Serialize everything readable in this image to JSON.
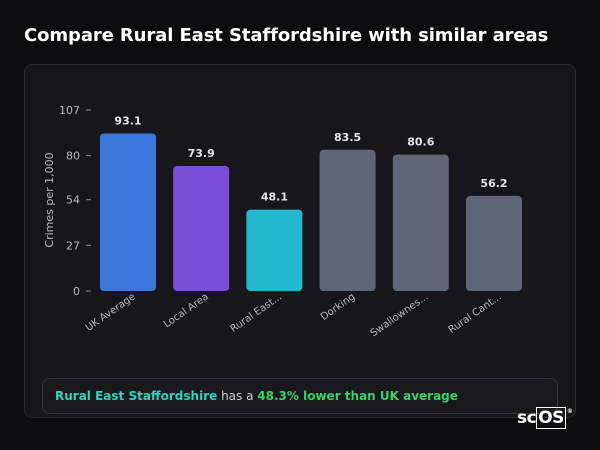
{
  "page": {
    "title": "Compare Rural East Staffordshire with similar areas"
  },
  "summary": {
    "area": "Rural East Staffordshire",
    "connector": "has a",
    "comparison": "48.3% lower than UK average"
  },
  "logo": {
    "prefix": "sc",
    "boxed": "OS",
    "mark": "®"
  },
  "chart_data": {
    "type": "bar",
    "ylabel": "Crimes per 1,000",
    "xlabel": "",
    "ylim": [
      0,
      107
    ],
    "yticks": [
      0,
      27,
      54,
      80,
      107
    ],
    "categories": [
      "UK Average",
      "Local Area",
      "Rural East...",
      "Dorking",
      "Swallownes...",
      "Rural Cant..."
    ],
    "values": [
      93.1,
      73.9,
      48.1,
      83.5,
      80.6,
      56.2
    ],
    "value_labels": [
      "93.1",
      "73.9",
      "48.1",
      "83.5",
      "80.6",
      "56.2"
    ],
    "colors": [
      "#3a78dc",
      "#7b4fd8",
      "#22b8cf",
      "#5d6778",
      "#5d6778",
      "#5d6778"
    ],
    "grid": false,
    "legend": "none"
  }
}
